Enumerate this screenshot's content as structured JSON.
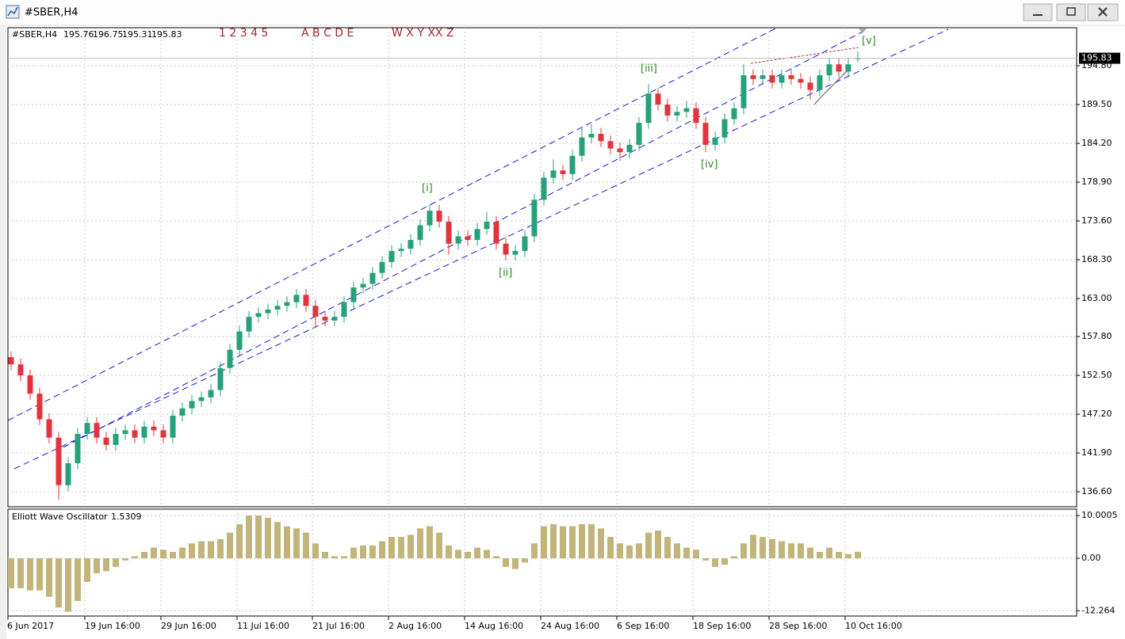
{
  "window": {
    "title": "#SBER,H4"
  },
  "chart_data": [
    {
      "type": "candlestick",
      "symbol": "#SBER,H4",
      "wave_labels": [
        "1 2 3 4 5",
        "A B C D E",
        "W X Y XX Z"
      ],
      "annotations": [
        "[i]",
        "[ii]",
        "[iii]",
        "[iv]",
        "[v]"
      ],
      "x_labels": [
        "6 Jun 2017",
        "19 Jun 16:00",
        "29 Jun 16:00",
        "11 Jul 16:00",
        "21 Jul 16:00",
        "2 Aug 16:00",
        "14 Aug 16:00",
        "24 Aug 16:00",
        "6 Sep 16:00",
        "18 Sep 16:00",
        "28 Sep 16:00",
        "10 Oct 16:00"
      ],
      "open": [
        155.0,
        154.0,
        152.5,
        150.0,
        146.5,
        144.0,
        137.5,
        140.5,
        144.5,
        146.0,
        144.0,
        143.0,
        144.5,
        145.0,
        144.0,
        145.5,
        145.0,
        144.0,
        147.0,
        148.0,
        149.0,
        149.5,
        150.5,
        153.5,
        156.0,
        158.5,
        160.5,
        161.0,
        161.5,
        162.0,
        162.5,
        163.5,
        162.0,
        160.5,
        160.0,
        160.5,
        162.5,
        164.5,
        165.0,
        166.5,
        168.0,
        169.5,
        169.8,
        171.0,
        173.0,
        175.0,
        173.5,
        170.5,
        171.5,
        171.0,
        172.5,
        173.5,
        170.5,
        169.0,
        169.5,
        171.5,
        176.5,
        179.5,
        180.5,
        180.0,
        182.5,
        185.0,
        185.5,
        184.5,
        183.5,
        183.0,
        184.0,
        187.0,
        191.0,
        189.5,
        188.0,
        188.5,
        189.0,
        187.0,
        184.0,
        185.0,
        187.5,
        189.0,
        193.5,
        193.0,
        193.5,
        192.5,
        193.5,
        193.0,
        192.5,
        191.5,
        193.5,
        195.0,
        194.0,
        195.76
      ],
      "high": [
        155.8,
        154.8,
        153.3,
        150.8,
        147.3,
        144.8,
        141.3,
        145.3,
        146.8,
        146.8,
        144.8,
        145.3,
        145.8,
        145.8,
        146.3,
        146.3,
        145.8,
        147.8,
        148.8,
        149.8,
        150.3,
        151.3,
        154.3,
        156.8,
        159.3,
        161.3,
        161.8,
        162.3,
        162.8,
        163.3,
        164.3,
        164.3,
        162.8,
        161.3,
        161.3,
        163.3,
        165.3,
        165.8,
        167.3,
        168.8,
        170.3,
        170.6,
        171.8,
        173.8,
        175.8,
        175.8,
        174.3,
        172.3,
        172.3,
        173.3,
        174.8,
        174.3,
        171.3,
        170.3,
        172.3,
        177.3,
        180.3,
        182.0,
        181.3,
        183.3,
        186.3,
        186.8,
        186.3,
        185.3,
        184.3,
        184.8,
        187.8,
        192.3,
        191.8,
        190.3,
        189.3,
        190.0,
        189.8,
        187.8,
        185.8,
        188.3,
        189.8,
        195.0,
        194.3,
        194.3,
        194.3,
        194.3,
        194.3,
        193.8,
        193.3,
        194.3,
        195.8,
        195.8,
        195.8,
        196.75
      ],
      "low": [
        153.2,
        151.7,
        149.2,
        145.7,
        143.2,
        135.5,
        136.7,
        139.7,
        143.7,
        143.2,
        142.2,
        142.2,
        143.7,
        143.2,
        143.2,
        144.2,
        143.2,
        143.2,
        146.2,
        147.2,
        148.2,
        148.7,
        149.7,
        152.7,
        155.2,
        157.7,
        159.7,
        160.2,
        160.7,
        161.2,
        161.7,
        161.2,
        159.0,
        159.2,
        159.2,
        159.7,
        161.7,
        163.7,
        164.2,
        165.7,
        167.2,
        168.7,
        169.0,
        170.2,
        172.2,
        172.7,
        169.0,
        169.7,
        170.2,
        170.2,
        171.7,
        169.7,
        168.2,
        168.2,
        168.7,
        170.7,
        175.7,
        178.7,
        179.2,
        179.2,
        181.7,
        184.2,
        183.7,
        182.7,
        181.8,
        182.2,
        183.2,
        186.2,
        188.7,
        187.2,
        187.2,
        187.7,
        186.2,
        183.0,
        183.2,
        184.2,
        186.7,
        188.2,
        192.2,
        192.2,
        191.7,
        191.7,
        192.2,
        191.7,
        190.2,
        190.7,
        192.7,
        193.2,
        193.2,
        195.31
      ],
      "close": [
        154.0,
        152.5,
        150.0,
        146.5,
        144.0,
        137.5,
        140.5,
        144.5,
        146.0,
        144.0,
        143.0,
        144.5,
        145.0,
        144.0,
        145.5,
        145.0,
        144.0,
        147.0,
        148.0,
        149.0,
        149.5,
        150.5,
        153.5,
        156.0,
        158.5,
        160.5,
        161.0,
        161.5,
        162.0,
        162.5,
        163.5,
        162.0,
        160.5,
        160.0,
        160.5,
        162.5,
        164.5,
        165.0,
        166.5,
        168.0,
        169.5,
        169.8,
        171.0,
        173.0,
        175.0,
        173.5,
        170.5,
        171.5,
        171.0,
        172.5,
        173.5,
        170.5,
        169.0,
        169.5,
        171.5,
        176.5,
        179.5,
        180.5,
        180.0,
        182.5,
        185.0,
        185.5,
        184.5,
        183.5,
        183.0,
        184.0,
        187.0,
        191.0,
        189.5,
        188.0,
        188.5,
        189.0,
        187.0,
        184.0,
        185.0,
        187.5,
        189.0,
        193.5,
        193.0,
        193.5,
        192.5,
        193.5,
        193.0,
        192.5,
        191.5,
        193.5,
        195.0,
        194.0,
        195.0,
        195.83
      ],
      "up_color": "#26a17b",
      "down_color": "#e3343d",
      "ylim": [
        134.55,
        200.0
      ],
      "yticks": [
        {
          "value": 194.8,
          "label": "194.80"
        },
        {
          "value": 189.5,
          "label": "189.50"
        },
        {
          "value": 184.2,
          "label": "184.20"
        },
        {
          "value": 178.9,
          "label": "178.90"
        },
        {
          "value": 173.6,
          "label": "173.60"
        },
        {
          "value": 168.3,
          "label": "168.30"
        },
        {
          "value": 163.0,
          "label": "163.00"
        },
        {
          "value": 157.8,
          "label": "157.80"
        },
        {
          "value": 152.5,
          "label": "152.50"
        },
        {
          "value": 147.2,
          "label": "147.20"
        },
        {
          "value": 141.9,
          "label": "141.90"
        },
        {
          "value": 136.6,
          "label": "136.60"
        }
      ],
      "grid": true
    },
    {
      "type": "bar",
      "title": "Elliott Wave Oscillator",
      "values": [
        -7,
        -7,
        -7.5,
        -7.5,
        -9,
        -11.5,
        -12.5,
        -10,
        -5.5,
        -3.5,
        -3,
        -2,
        -0.5,
        0.5,
        1.5,
        2.5,
        2,
        1.5,
        2.5,
        3.5,
        4,
        4,
        4.5,
        6,
        8,
        10,
        10,
        9.5,
        8.5,
        7.5,
        7,
        6,
        3.5,
        1.5,
        0.5,
        0.5,
        2.5,
        3,
        3,
        4,
        5,
        5,
        5.5,
        7,
        7.5,
        6,
        3,
        2,
        1.5,
        2.5,
        2,
        0.5,
        -2,
        -2.5,
        -1,
        3.5,
        7.5,
        8,
        7.5,
        7.5,
        8,
        8,
        7,
        5,
        3.5,
        3,
        3.5,
        6,
        6.5,
        5,
        3.5,
        2.5,
        2,
        -0.5,
        -2,
        -1.5,
        0.5,
        3.5,
        5.5,
        5,
        4.5,
        4,
        3.5,
        3.5,
        2.5,
        1.5,
        2.5,
        1.5,
        1,
        1.5309
      ],
      "color": "#c2b57b",
      "ylim": [
        -13.5,
        11.5
      ],
      "yticks": [
        10.0005,
        {
          "value": 0,
          "label": "0.00"
        },
        -12.264
      ],
      "grid": true
    }
  ]
}
